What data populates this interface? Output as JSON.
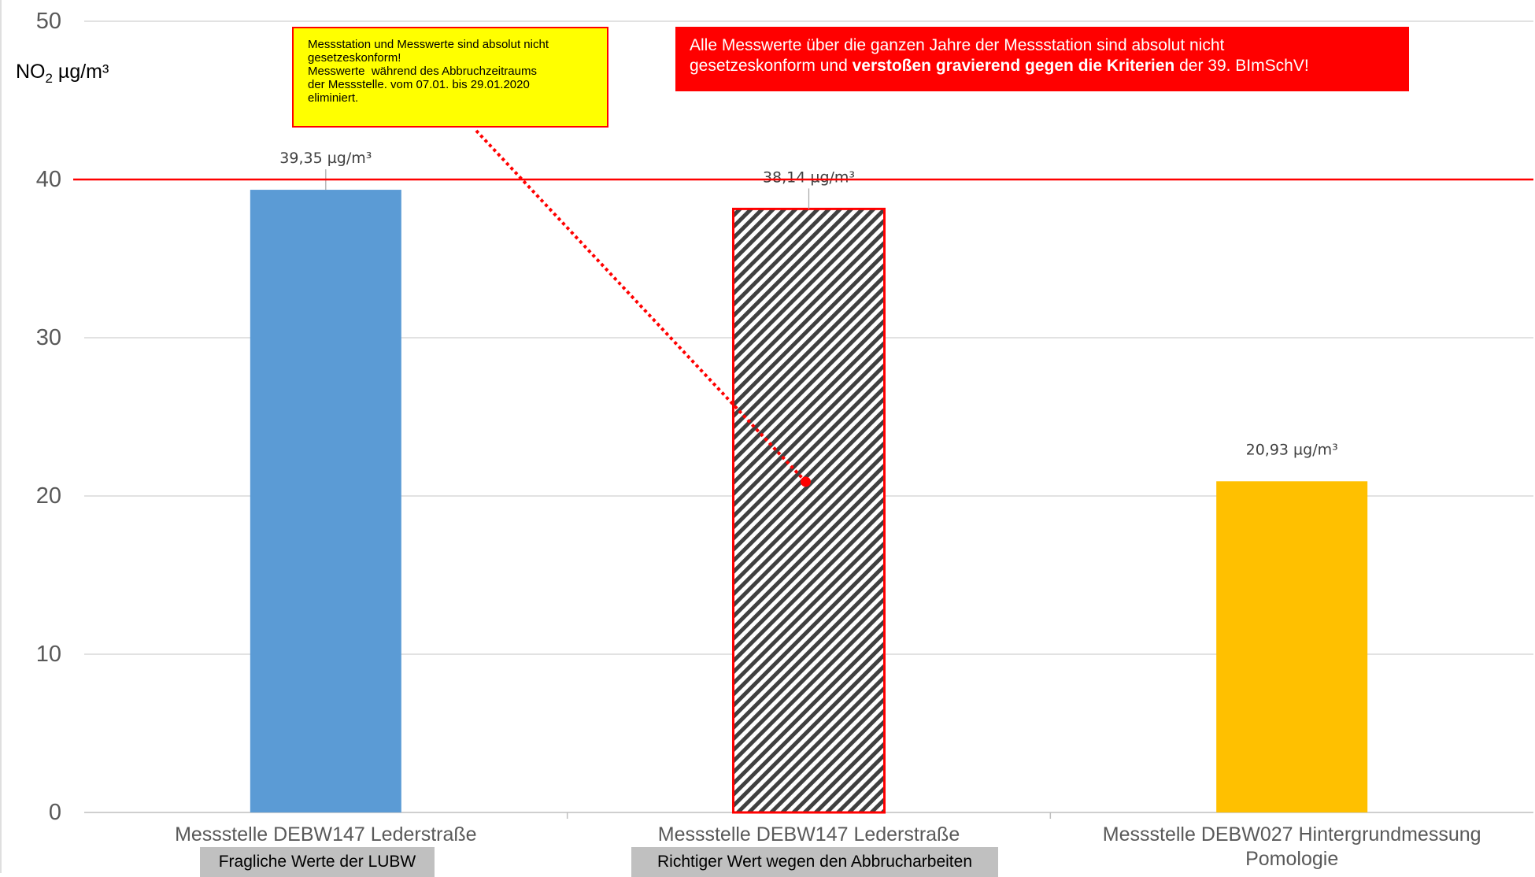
{
  "chart_data": {
    "type": "bar",
    "ylabel_main": "NO",
    "ylabel_sub": "2",
    "ylabel_unit": " µg/m³",
    "ylim": [
      0,
      50
    ],
    "yticks": [
      "0",
      "10",
      "20",
      "30",
      "40",
      "50"
    ],
    "grid": true,
    "limit_line": 40,
    "categories": [
      {
        "lines": [
          "Messstelle DEBW147 Lederstraße"
        ],
        "sublabel": "Fragliche Werte der LUBW"
      },
      {
        "lines": [
          "Messstelle DEBW147 Lederstraße"
        ],
        "sublabel": "Richtiger Wert wegen den Abbrucharbeiten"
      },
      {
        "lines": [
          "Messstelle DEBW027 Hintergrundmessung",
          "Pomologie"
        ],
        "sublabel": ""
      }
    ],
    "values": [
      39.35,
      38.14,
      20.93
    ],
    "data_labels": [
      "39,35 µg/m³",
      "38,14 µg/m³",
      "20,93 µg/m³"
    ],
    "bar_colors": [
      "#5b9bd5",
      "hatch",
      "#ffc000"
    ],
    "limit_color": "#ff0000"
  },
  "annotations": {
    "yellow_note": [
      "Messstation und Messwerte sind absolut nicht",
      "gesetzeskonform!",
      "Messwerte  während des Abbruchzeitraums",
      "der Messstelle. vom 07.01. bis 29.01.2020",
      "eliminiert."
    ],
    "red_note": {
      "line1": "Alle Messwerte über die ganzen Jahre der Messstation sind absolut nicht",
      "line2_pre": "gesetzeskonform und ",
      "line2_bold": "verstoßen gravierend gegen die Kriterien",
      "line2_post": " der 39. BImSchV!"
    }
  }
}
